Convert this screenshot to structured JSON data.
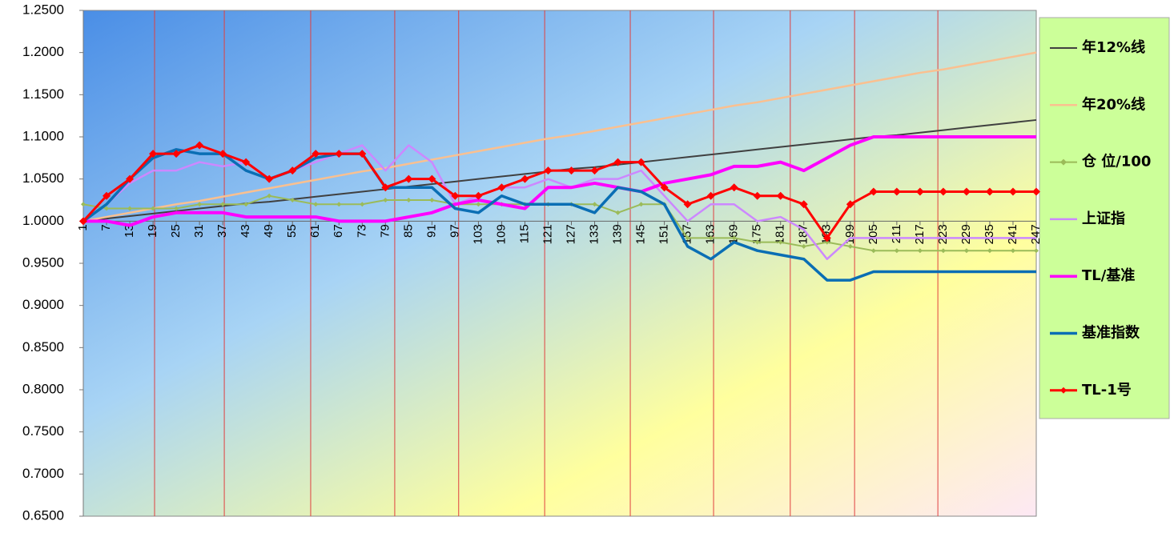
{
  "chart_data": {
    "type": "line",
    "x": [
      1,
      7,
      13,
      19,
      25,
      31,
      37,
      43,
      49,
      55,
      61,
      67,
      73,
      79,
      85,
      91,
      97,
      103,
      109,
      115,
      121,
      127,
      133,
      139,
      145,
      151,
      157,
      163,
      169,
      175,
      181,
      187,
      193,
      199,
      205,
      211,
      217,
      223,
      229,
      235,
      241,
      247
    ],
    "xlim": [
      1,
      247
    ],
    "xticks": [
      1,
      7,
      13,
      19,
      25,
      31,
      37,
      43,
      49,
      55,
      61,
      67,
      73,
      79,
      85,
      91,
      97,
      103,
      109,
      115,
      121,
      127,
      133,
      139,
      145,
      151,
      157,
      163,
      169,
      175,
      181,
      187,
      193,
      199,
      205,
      211,
      217,
      223,
      229,
      235,
      241,
      247
    ],
    "ylim": [
      0.65,
      1.25
    ],
    "yticks": [
      {
        "value": 0.65,
        "label": "0.6500"
      },
      {
        "value": 0.7,
        "label": "0.7000"
      },
      {
        "value": 0.75,
        "label": "0.7500"
      },
      {
        "value": 0.8,
        "label": "0.8000"
      },
      {
        "value": 0.85,
        "label": "0.8500"
      },
      {
        "value": 0.9,
        "label": "0.9000"
      },
      {
        "value": 0.95,
        "label": "0.9500"
      },
      {
        "value": 1.0,
        "label": "1.0000"
      },
      {
        "value": 1.05,
        "label": "1.0500"
      },
      {
        "value": 1.1,
        "label": "1.1000"
      },
      {
        "value": 1.15,
        "label": "1.1500"
      },
      {
        "value": 1.2,
        "label": "1.2000"
      },
      {
        "value": 1.25,
        "label": "1.2500"
      }
    ],
    "vlines": [
      19.4,
      37.4,
      59.7,
      81.4,
      97.9,
      120.1,
      142.2,
      163.7,
      183.5,
      200.1,
      221.6
    ],
    "vline_color": "#e04040",
    "legend": "right",
    "series": [
      {
        "name": "年12%线",
        "color": "#404040",
        "width": 2,
        "values": [
          1.0,
          1.003,
          1.006,
          1.009,
          1.012,
          1.015,
          1.018,
          1.021,
          1.023,
          1.026,
          1.029,
          1.032,
          1.035,
          1.038,
          1.041,
          1.044,
          1.047,
          1.05,
          1.053,
          1.056,
          1.059,
          1.062,
          1.064,
          1.067,
          1.07,
          1.073,
          1.076,
          1.079,
          1.082,
          1.085,
          1.088,
          1.091,
          1.094,
          1.097,
          1.1,
          1.102,
          1.105,
          1.108,
          1.111,
          1.114,
          1.117,
          1.12
        ]
      },
      {
        "name": "年20%线",
        "color": "#fac090",
        "width": 2.5,
        "values": [
          1.0,
          1.005,
          1.01,
          1.015,
          1.02,
          1.024,
          1.029,
          1.034,
          1.039,
          1.044,
          1.049,
          1.054,
          1.059,
          1.063,
          1.068,
          1.073,
          1.078,
          1.083,
          1.088,
          1.093,
          1.098,
          1.102,
          1.107,
          1.112,
          1.117,
          1.122,
          1.127,
          1.132,
          1.137,
          1.141,
          1.146,
          1.151,
          1.156,
          1.161,
          1.166,
          1.171,
          1.176,
          1.18,
          1.185,
          1.19,
          1.195,
          1.2
        ]
      },
      {
        "name": "仓 位/100",
        "color": "#9bbb59",
        "width": 2,
        "marker": "dot",
        "values": [
          1.02,
          1.015,
          1.015,
          1.015,
          1.015,
          1.02,
          1.02,
          1.02,
          1.03,
          1.025,
          1.02,
          1.02,
          1.02,
          1.025,
          1.025,
          1.025,
          1.02,
          1.02,
          1.02,
          1.02,
          1.02,
          1.02,
          1.02,
          1.01,
          1.02,
          1.02,
          0.98,
          0.98,
          0.98,
          0.975,
          0.975,
          0.97,
          0.975,
          0.97,
          0.965,
          0.965,
          0.965,
          0.965,
          0.965,
          0.965,
          0.965,
          0.965
        ]
      },
      {
        "name": "上证指",
        "color": "#cc88ff",
        "width": 2.5,
        "values": [
          1.0,
          1.02,
          1.045,
          1.06,
          1.06,
          1.07,
          1.065,
          1.07,
          1.05,
          1.06,
          1.07,
          1.08,
          1.09,
          1.06,
          1.09,
          1.07,
          1.02,
          1.03,
          1.04,
          1.04,
          1.05,
          1.04,
          1.05,
          1.05,
          1.06,
          1.03,
          1.0,
          1.02,
          1.02,
          1.0,
          1.005,
          0.99,
          0.955,
          0.98,
          0.98,
          0.98,
          0.98,
          0.98,
          0.98,
          0.98,
          0.98,
          0.98
        ]
      },
      {
        "name": "TL/基准",
        "color": "#ff00ff",
        "width": 4,
        "values": [
          1.0,
          1.0,
          0.995,
          1.005,
          1.01,
          1.01,
          1.01,
          1.005,
          1.005,
          1.005,
          1.005,
          1.0,
          1.0,
          1.0,
          1.005,
          1.01,
          1.02,
          1.025,
          1.02,
          1.015,
          1.04,
          1.04,
          1.045,
          1.04,
          1.035,
          1.045,
          1.05,
          1.055,
          1.065,
          1.065,
          1.07,
          1.06,
          1.075,
          1.09,
          1.1,
          1.1,
          1.1,
          1.1,
          1.1,
          1.1,
          1.1,
          1.1
        ]
      },
      {
        "name": "基准指数",
        "color": "#0a6eb4",
        "width": 3.5,
        "values": [
          1.0,
          1.02,
          1.05,
          1.075,
          1.085,
          1.08,
          1.08,
          1.06,
          1.05,
          1.06,
          1.075,
          1.08,
          1.08,
          1.04,
          1.04,
          1.04,
          1.015,
          1.01,
          1.03,
          1.02,
          1.02,
          1.02,
          1.01,
          1.04,
          1.035,
          1.02,
          0.97,
          0.955,
          0.975,
          0.965,
          0.96,
          0.955,
          0.93,
          0.93,
          0.94,
          0.94,
          0.94,
          0.94,
          0.94,
          0.94,
          0.94,
          0.94
        ]
      },
      {
        "name": "TL-1号",
        "color": "#ff0000",
        "width": 3,
        "marker": "diamond",
        "values": [
          1.0,
          1.03,
          1.05,
          1.08,
          1.08,
          1.09,
          1.08,
          1.07,
          1.05,
          1.06,
          1.08,
          1.08,
          1.08,
          1.04,
          1.05,
          1.05,
          1.03,
          1.03,
          1.04,
          1.05,
          1.06,
          1.06,
          1.06,
          1.07,
          1.07,
          1.04,
          1.02,
          1.03,
          1.04,
          1.03,
          1.03,
          1.02,
          0.98,
          1.02,
          1.035,
          1.035,
          1.035,
          1.035,
          1.035,
          1.035,
          1.035,
          1.035
        ]
      }
    ]
  }
}
